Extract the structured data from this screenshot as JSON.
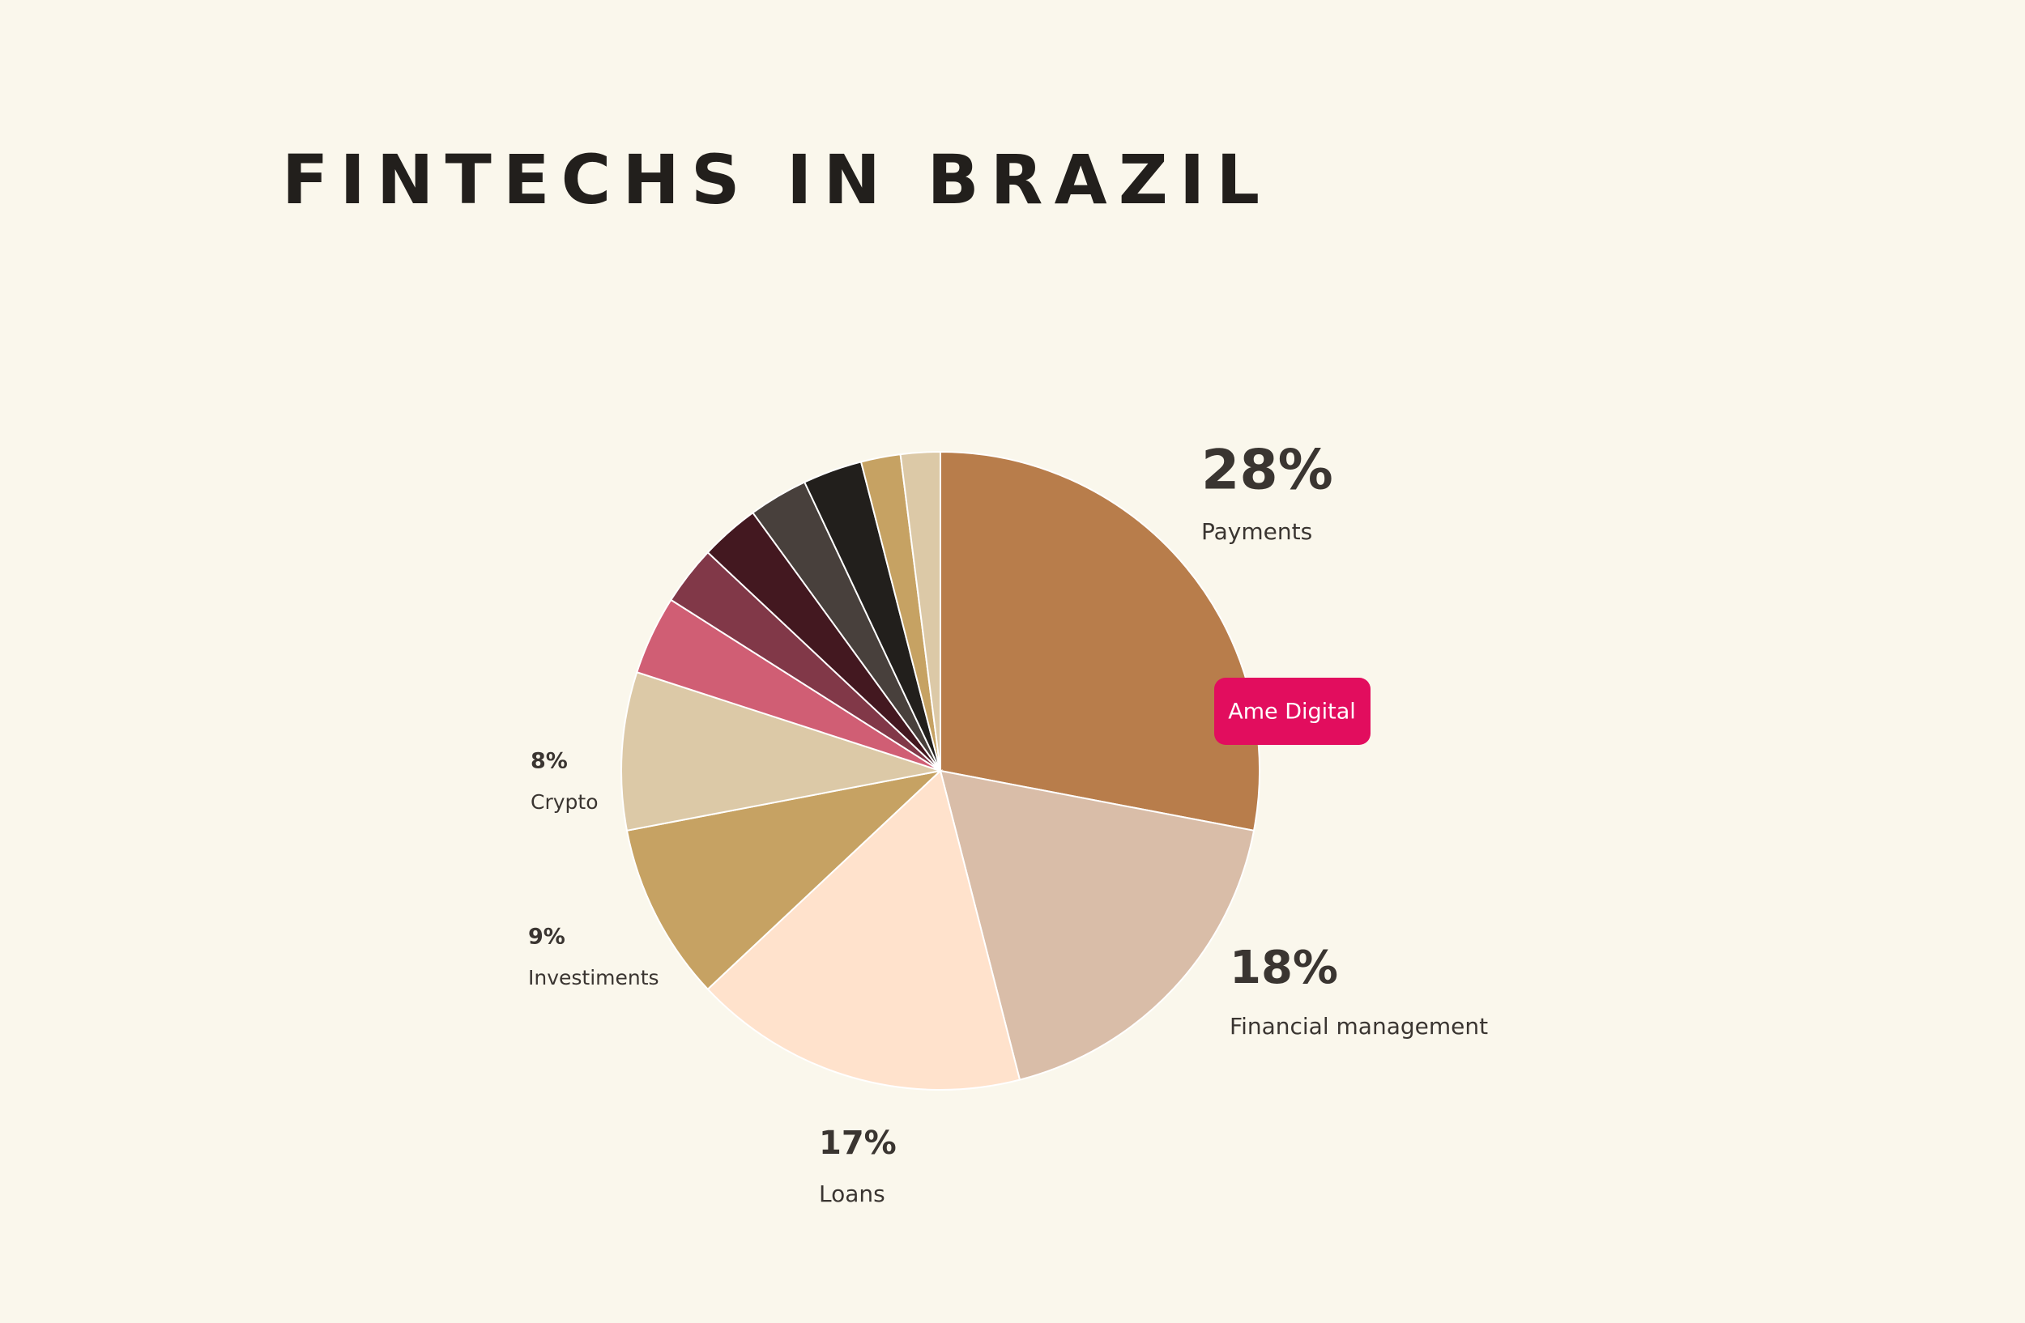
{
  "chart_data": {
    "type": "pie",
    "title": "FINTECHS IN BRAZIL",
    "categories": [
      "Payments",
      "Financial management",
      "Loans",
      "Investiments",
      "Crypto",
      null,
      null,
      null,
      null,
      null,
      null,
      null
    ],
    "values": [
      28,
      18,
      17,
      9,
      8,
      4,
      3,
      3,
      3,
      3,
      2,
      2
    ],
    "value_labels": [
      "28%",
      "18%",
      "17%",
      "9%",
      "8%",
      null,
      null,
      null,
      null,
      null,
      null,
      null
    ],
    "colors": [
      "#b87d4b",
      "#d9bda8",
      "#ffe2cc",
      "#c6a263",
      "#dcc9a7",
      "#d05e74",
      "#813848",
      "#431820",
      "#48403c",
      "#221f1c",
      "#c6a263",
      "#dcc9a7"
    ],
    "tooltip": "Ame Digital"
  }
}
